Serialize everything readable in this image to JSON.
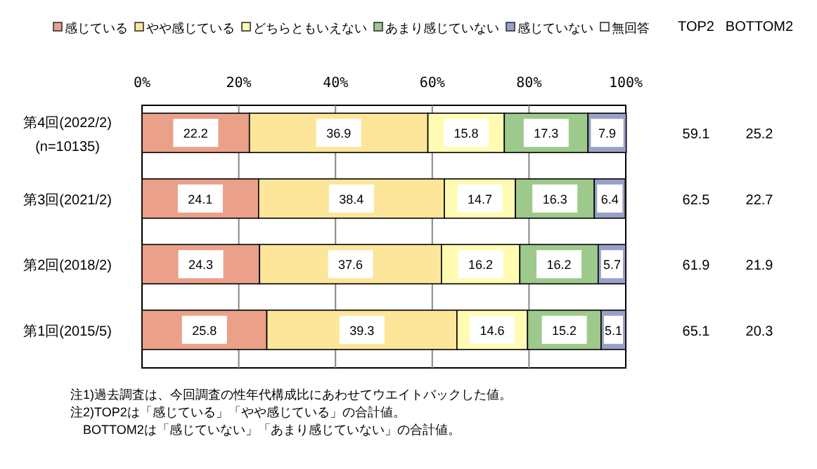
{
  "chart_data": {
    "type": "bar",
    "orientation": "horizontal",
    "stacked": true,
    "categories": [
      "第4回(2022/2)\n(n=10135)",
      "第3回(2021/2)",
      "第2回(2018/2)",
      "第1回(2015/5)"
    ],
    "series": [
      {
        "name": "感じている",
        "color": "#eba08a",
        "values": [
          22.2,
          24.1,
          24.3,
          25.8
        ]
      },
      {
        "name": "やや感じている",
        "color": "#fde699",
        "values": [
          36.9,
          38.4,
          37.6,
          39.3
        ]
      },
      {
        "name": "どちらともいえない",
        "color": "#fffbb3",
        "values": [
          15.8,
          14.7,
          16.2,
          14.6
        ]
      },
      {
        "name": "あまり感じていない",
        "color": "#9ec98c",
        "values": [
          17.3,
          16.3,
          16.2,
          15.2
        ]
      },
      {
        "name": "感じていない",
        "color": "#98a0c8",
        "values": [
          7.9,
          6.4,
          5.7,
          5.1
        ]
      },
      {
        "name": "無回答",
        "color": "#ffffff",
        "values": [
          null,
          null,
          null,
          null
        ]
      }
    ],
    "xlim": [
      0,
      100
    ],
    "xticks": [
      {
        "value": 0,
        "label": "0%"
      },
      {
        "value": 20,
        "label": "20%"
      },
      {
        "value": 40,
        "label": "40%"
      },
      {
        "value": 60,
        "label": "60%"
      },
      {
        "value": 80,
        "label": "80%"
      },
      {
        "value": 100,
        "label": "100%"
      }
    ],
    "grid": "x",
    "legend": "top",
    "data_labels": true,
    "annotations": [
      "TOP2",
      "BOTTOM2",
      "59.1",
      "25.2",
      "62.5",
      "22.7",
      "61.9",
      "21.9",
      "65.1",
      "20.3",
      "注1)過去調査は、今回調査の性年代構成比にあわせてウエイトバックした値。",
      "注2)TOP2は「感じている」「やや感じている」の合計値。",
      "　BOTTOM2は「感じていない」「あまり感じていない」の合計値。"
    ]
  }
}
